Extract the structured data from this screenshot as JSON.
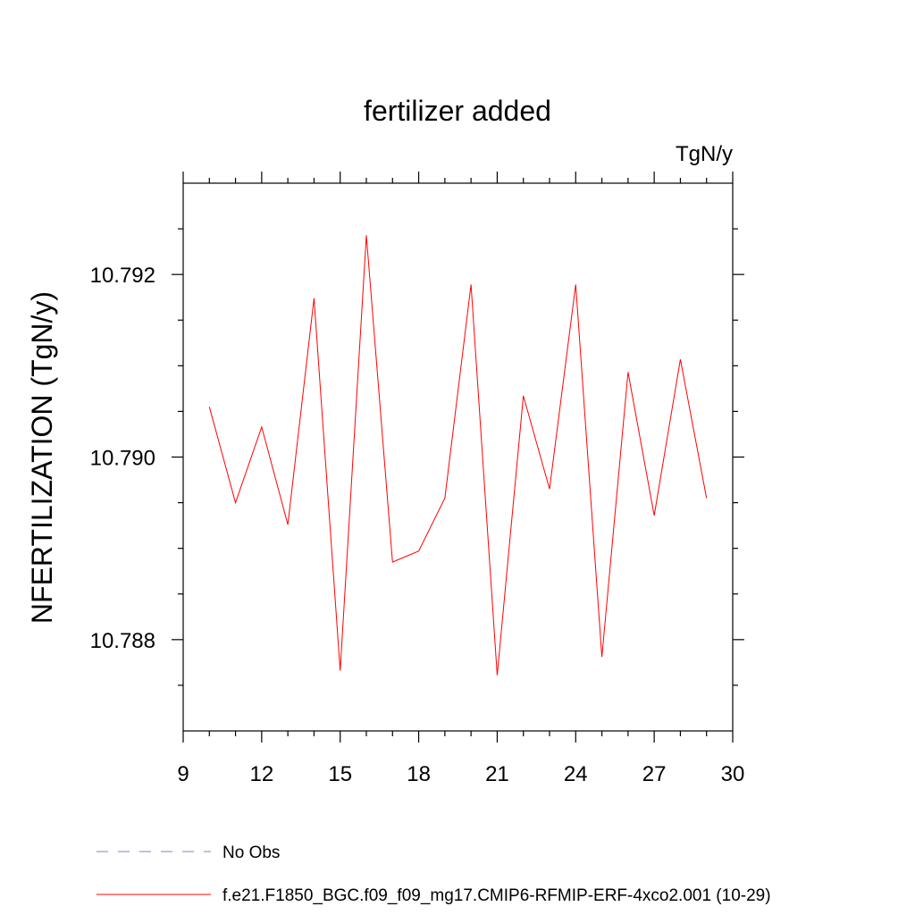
{
  "chart_data": {
    "type": "line",
    "title": "fertilizer added",
    "units_label": "TgN/y",
    "xlabel": "",
    "ylabel": "NFERTILIZATION  (TgN/y)",
    "xlim": [
      9,
      30
    ],
    "ylim": [
      10.787,
      10.793
    ],
    "x_ticks": [
      9,
      12,
      15,
      18,
      21,
      24,
      27,
      30
    ],
    "x_tick_labels": [
      "9",
      "12",
      "15",
      "18",
      "21",
      "24",
      "27",
      "30"
    ],
    "y_ticks": [
      10.788,
      10.79,
      10.792
    ],
    "y_tick_labels": [
      "10.788",
      "10.790",
      "10.792"
    ],
    "grid": false,
    "legend_position": "bottom-left",
    "series": [
      {
        "name": "f.e21.F1850_BGC.f09_f09_mg17.CMIP6-RFMIP-ERF-4xco2.001 (10-29)",
        "color": "#ff0000",
        "style": "solid",
        "x": [
          10,
          11,
          12,
          13,
          14,
          15,
          16,
          17,
          18,
          19,
          20,
          21,
          22,
          23,
          24,
          25,
          26,
          27,
          28,
          29
        ],
        "values": [
          10.79055,
          10.7895,
          10.79033,
          10.78926,
          10.79174,
          10.78766,
          10.79243,
          10.78885,
          10.78897,
          10.78955,
          10.79189,
          10.78761,
          10.79067,
          10.78965,
          10.79189,
          10.78781,
          10.79093,
          10.78936,
          10.79107,
          10.78955
        ]
      }
    ],
    "legend": [
      {
        "label": "No Obs",
        "color": "#8080c0",
        "style": "dashed"
      },
      {
        "label": "f.e21.F1850_BGC.f09_f09_mg17.CMIP6-RFMIP-ERF-4xco2.001 (10-29)",
        "color": "#ff0000",
        "style": "solid"
      }
    ]
  }
}
